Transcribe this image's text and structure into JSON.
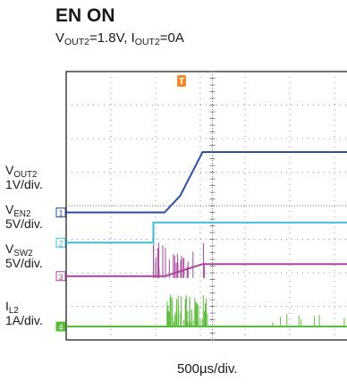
{
  "title": "EN ON",
  "subtitle": {
    "v_name": "V",
    "v_sub": "OUT2",
    "v_val": "=1.8V, ",
    "i_name": "I",
    "i_sub": "OUT2",
    "i_val": "=0A"
  },
  "chart_data": {
    "type": "line",
    "title": "EN ON",
    "xlabel": "500µs/div.",
    "grid": true,
    "trigger_marker": "T",
    "x_divisions_visible": 6.4,
    "y_divisions": 8,
    "series": [
      {
        "channel": "1",
        "label_name": "V",
        "label_sub": "OUT2",
        "scale": "1V/div.",
        "color": "#2b4fa3",
        "baseline_div": 4.2,
        "points": [
          [
            0,
            0
          ],
          [
            2.2,
            0
          ],
          [
            2.55,
            0.5
          ],
          [
            3.05,
            1.8
          ],
          [
            6.4,
            1.8
          ]
        ]
      },
      {
        "channel": "2",
        "label_name": "V",
        "label_sub": "EN2",
        "scale": "5V/div.",
        "color": "#3bbfd0",
        "baseline_div": 5.1,
        "points": [
          [
            0,
            0
          ],
          [
            1.95,
            0
          ],
          [
            1.95,
            0.6
          ],
          [
            6.4,
            0.6
          ]
        ]
      },
      {
        "channel": "3",
        "label_name": "V",
        "label_sub": "SW2",
        "scale": "5V/div.",
        "color": "#a8459c",
        "baseline_div": 6.1,
        "points": [
          [
            0,
            0
          ],
          [
            2.2,
            0
          ],
          [
            3.05,
            0.36
          ],
          [
            6.4,
            0.36
          ]
        ]
      },
      {
        "channel": "4",
        "label_name": "I",
        "label_sub": "L2",
        "scale": "1A/div.",
        "color": "#5dbb3b",
        "baseline_div": 7.6,
        "points": [
          [
            0,
            0
          ],
          [
            6.4,
            0
          ]
        ]
      }
    ]
  }
}
